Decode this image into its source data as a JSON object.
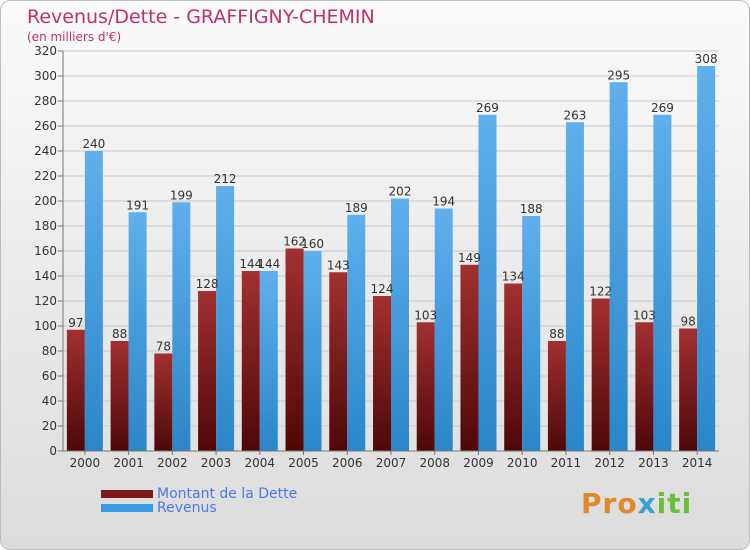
{
  "header": {
    "title": "Revenus/Dette - GRAFFIGNY-CHEMIN",
    "subtitle": "(en milliers d'€)"
  },
  "legend": {
    "items": [
      {
        "label": "Montant de la Dette",
        "color": "#7a1a1a"
      },
      {
        "label": "Revenus",
        "color": "#3a9ae0"
      }
    ]
  },
  "logo": {
    "part1": "Pro",
    "part2": "x",
    "part3": "iti"
  },
  "colors": {
    "debt_dark": "#4e0808",
    "debt_light": "#a23030",
    "revenue_dark": "#2a86c9",
    "revenue_light": "#5fb0ec",
    "grid": "#c9c9c9",
    "axis_text": "#333333",
    "label_text": "#333333"
  },
  "chart_data": {
    "type": "bar",
    "categories": [
      "2000",
      "2001",
      "2002",
      "2003",
      "2004",
      "2005",
      "2006",
      "2007",
      "2008",
      "2009",
      "2010",
      "2011",
      "2012",
      "2013",
      "2014"
    ],
    "series": [
      {
        "name": "Montant de la Dette",
        "values": [
          97,
          88,
          78,
          128,
          144,
          162,
          143,
          124,
          103,
          149,
          134,
          88,
          122,
          103,
          98
        ]
      },
      {
        "name": "Revenus",
        "values": [
          240,
          191,
          199,
          212,
          144,
          160,
          189,
          202,
          194,
          269,
          188,
          263,
          295,
          269,
          308
        ]
      }
    ],
    "ylim": [
      0,
      320
    ],
    "yticks": [
      0,
      20,
      40,
      60,
      80,
      100,
      120,
      140,
      160,
      180,
      200,
      220,
      240,
      260,
      280,
      300,
      320
    ],
    "grid": true,
    "legend_position": "bottom-left"
  }
}
